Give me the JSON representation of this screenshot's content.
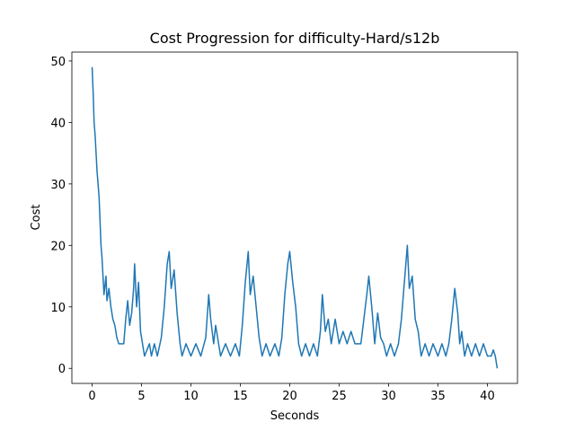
{
  "chart_data": {
    "type": "line",
    "title": "Cost Progression for difficulty-Hard/s12b",
    "x_label": "Seconds",
    "y_label": "Cost",
    "color": "#1f77b4",
    "x": [
      0,
      0.1,
      0.2,
      0.3,
      0.4,
      0.5,
      0.6,
      0.7,
      0.8,
      0.9,
      1.0,
      1.1,
      1.2,
      1.4,
      1.5,
      1.7,
      1.9,
      2.1,
      2.3,
      2.5,
      2.7,
      3.2,
      3.4,
      3.6,
      3.8,
      4.0,
      4.2,
      4.3,
      4.5,
      4.7,
      4.9,
      5.1,
      5.3,
      5.8,
      6.0,
      6.3,
      6.6,
      7.0,
      7.3,
      7.6,
      7.8,
      8.0,
      8.3,
      8.6,
      8.9,
      9.1,
      9.5,
      10.0,
      10.5,
      11.0,
      11.5,
      11.8,
      12.0,
      12.3,
      12.5,
      12.8,
      13.0,
      13.5,
      14.0,
      14.5,
      14.9,
      15.2,
      15.5,
      15.8,
      16.0,
      16.3,
      16.6,
      16.9,
      17.2,
      17.6,
      18.0,
      18.5,
      18.9,
      19.2,
      19.5,
      19.8,
      20.0,
      20.3,
      20.6,
      20.9,
      21.2,
      21.6,
      22.0,
      22.4,
      22.8,
      23.1,
      23.3,
      23.6,
      23.9,
      24.2,
      24.6,
      25.0,
      25.4,
      25.8,
      26.2,
      26.6,
      27.2,
      27.5,
      27.8,
      28.0,
      28.3,
      28.6,
      28.9,
      29.2,
      29.5,
      29.8,
      30.2,
      30.6,
      31.0,
      31.3,
      31.6,
      31.9,
      32.1,
      32.4,
      32.7,
      33.0,
      33.3,
      33.7,
      34.1,
      34.5,
      35.0,
      35.4,
      35.8,
      36.1,
      36.4,
      36.7,
      37.0,
      37.2,
      37.4,
      37.7,
      38.0,
      38.4,
      38.8,
      39.2,
      39.6,
      40.0,
      40.4,
      40.6,
      40.8,
      41.0
    ],
    "values": [
      49,
      45,
      40,
      38,
      35,
      32,
      30,
      28,
      24,
      20,
      18,
      15,
      12,
      15,
      11,
      13,
      10,
      8,
      7,
      5,
      4,
      4,
      8,
      11,
      7,
      9,
      13,
      17,
      10,
      14,
      6,
      4,
      2,
      4,
      2,
      4,
      2,
      5,
      10,
      17,
      19,
      13,
      16,
      9,
      4,
      2,
      4,
      2,
      4,
      2,
      5,
      12,
      8,
      4,
      7,
      4,
      2,
      4,
      2,
      4,
      2,
      7,
      14,
      19,
      12,
      15,
      10,
      5,
      2,
      4,
      2,
      4,
      2,
      5,
      12,
      17,
      19,
      14,
      10,
      4,
      2,
      4,
      2,
      4,
      2,
      6,
      12,
      6,
      8,
      4,
      8,
      4,
      6,
      4,
      6,
      4,
      4,
      8,
      12,
      15,
      10,
      4,
      9,
      5,
      4,
      2,
      4,
      2,
      4,
      8,
      14,
      20,
      13,
      15,
      8,
      6,
      2,
      4,
      2,
      4,
      2,
      4,
      2,
      4,
      8,
      13,
      9,
      4,
      6,
      2,
      4,
      2,
      4,
      2,
      4,
      2,
      2,
      3,
      2,
      0
    ],
    "xlim": [
      -2.05,
      43.05
    ],
    "ylim": [
      -2.45,
      51.45
    ],
    "xticks": [
      0,
      5,
      10,
      15,
      20,
      25,
      30,
      35,
      40
    ],
    "yticks": [
      0,
      10,
      20,
      30,
      40,
      50
    ]
  }
}
